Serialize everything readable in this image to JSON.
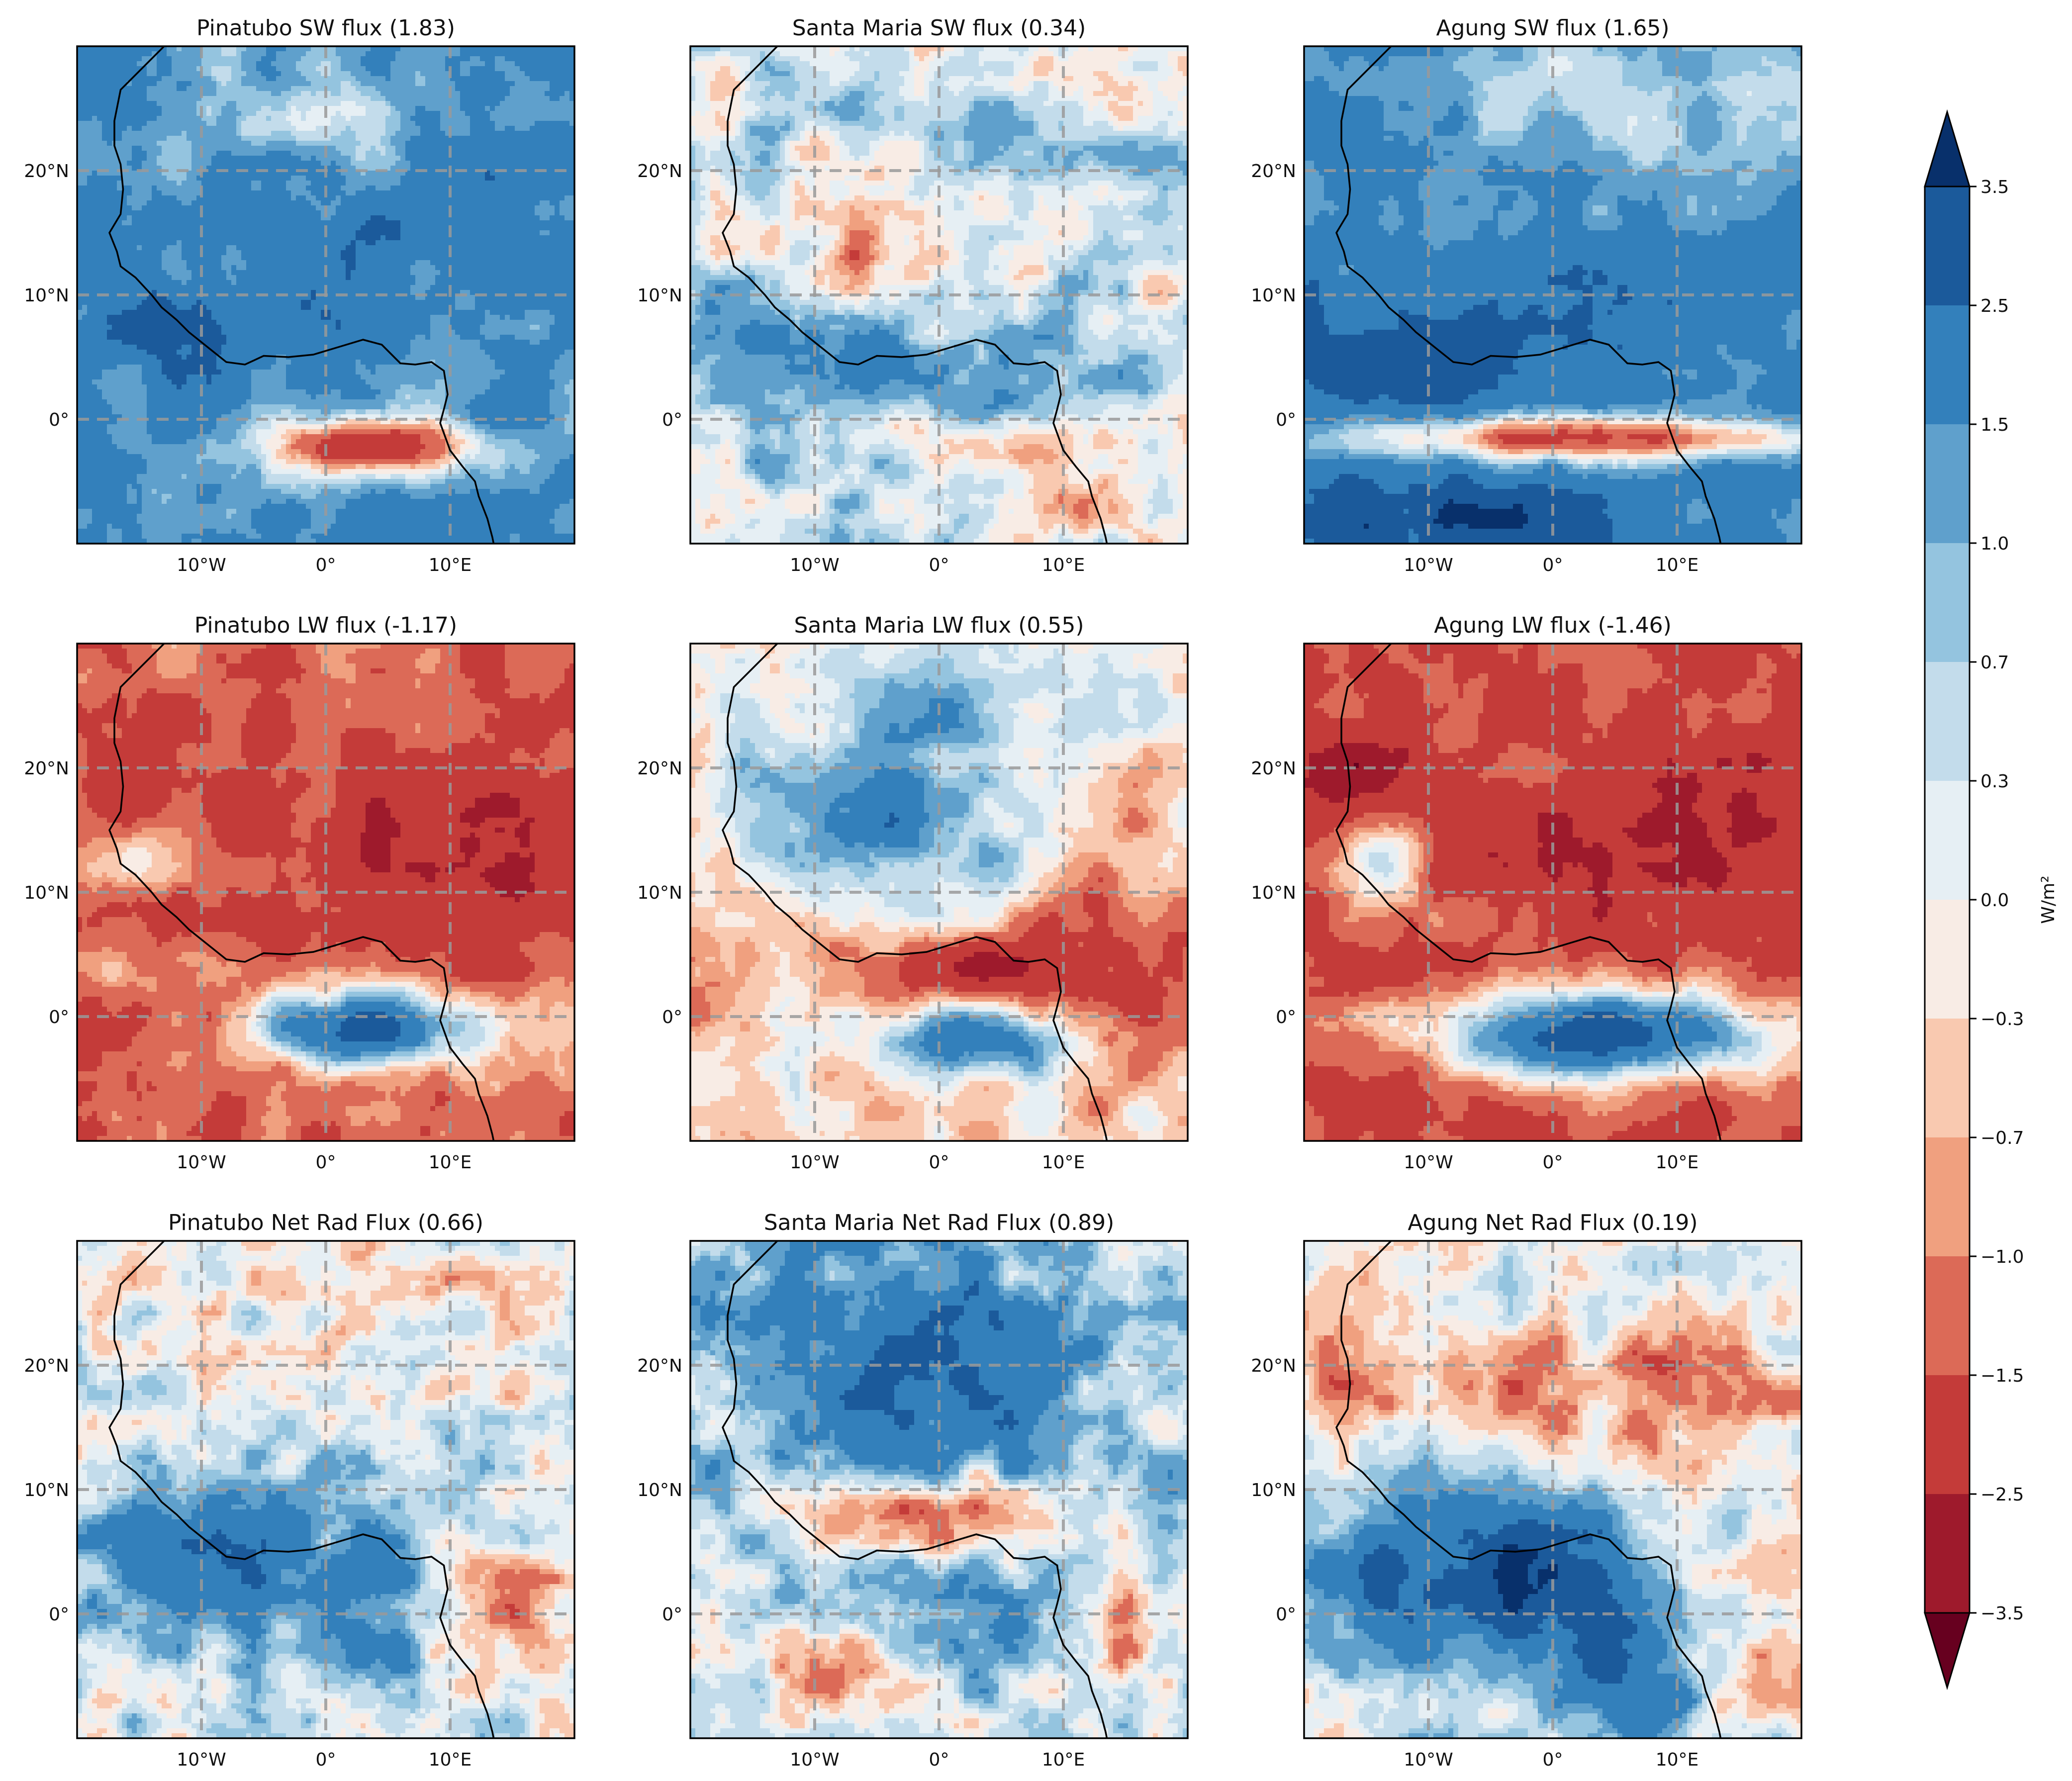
{
  "panels": [
    {
      "title": "Pinatubo SW flux (1.83)",
      "variable": "SW",
      "pattern": "sw_strong"
    },
    {
      "title": "Santa Maria SW flux (0.34)",
      "variable": "SW",
      "pattern": "sw_mixed"
    },
    {
      "title": "Agung SW flux (1.65)",
      "variable": "SW",
      "pattern": "sw_strong2"
    },
    {
      "title": "Pinatubo LW flux (-1.17)",
      "variable": "LW",
      "pattern": "lw_red"
    },
    {
      "title": "Santa Maria LW flux (0.55)",
      "variable": "LW",
      "pattern": "lw_mixed"
    },
    {
      "title": "Agung LW flux (-1.46)",
      "variable": "LW",
      "pattern": "lw_red2"
    },
    {
      "title": "Pinatubo Net Rad Flux (0.66)",
      "variable": "Net",
      "pattern": "net1"
    },
    {
      "title": "Santa Maria Net Rad Flux (0.89)",
      "variable": "Net",
      "pattern": "net2"
    },
    {
      "title": "Agung Net Rad Flux (0.19)",
      "variable": "Net",
      "pattern": "net3"
    }
  ],
  "axes": {
    "lat_ticks": [
      "20°N",
      "10°N",
      "0°"
    ],
    "lon_ticks": [
      "10°W",
      "0°",
      "10°E"
    ],
    "lon_range": [
      -20,
      20
    ],
    "lat_range": [
      -10,
      30
    ]
  },
  "colorbar": {
    "label": "W/m²",
    "ticks": [
      "3.5",
      "2.5",
      "1.5",
      "1.0",
      "0.7",
      "0.3",
      "0.0",
      "−0.3",
      "−0.7",
      "−1.0",
      "−1.5",
      "−2.5",
      "−3.5"
    ],
    "colors_top_to_bottom": [
      "#08306b",
      "#1b5a9b",
      "#3380bb",
      "#5fa0cc",
      "#94c4df",
      "#c3dceb",
      "#e6eff4",
      "#f8ece5",
      "#f9c9b0",
      "#f0a07f",
      "#dc6a57",
      "#c43b39",
      "#9e1a2c",
      "#67001f"
    ],
    "extend": "both",
    "colormap": "RdBu"
  },
  "chart_data": [
    {
      "type": "heatmap",
      "title": "Pinatubo SW flux (1.83)",
      "xlabel": "",
      "ylabel": "",
      "xlim": [
        -20,
        20
      ],
      "ylim": [
        -10,
        30
      ],
      "mean": 1.83
    },
    {
      "type": "heatmap",
      "title": "Santa Maria SW flux (0.34)",
      "xlabel": "",
      "ylabel": "",
      "xlim": [
        -20,
        20
      ],
      "ylim": [
        -10,
        30
      ],
      "mean": 0.34
    },
    {
      "type": "heatmap",
      "title": "Agung SW flux (1.65)",
      "xlabel": "",
      "ylabel": "",
      "xlim": [
        -20,
        20
      ],
      "ylim": [
        -10,
        30
      ],
      "mean": 1.65
    },
    {
      "type": "heatmap",
      "title": "Pinatubo LW flux (-1.17)",
      "xlabel": "",
      "ylabel": "",
      "xlim": [
        -20,
        20
      ],
      "ylim": [
        -10,
        30
      ],
      "mean": -1.17
    },
    {
      "type": "heatmap",
      "title": "Santa Maria LW flux (0.55)",
      "xlabel": "",
      "ylabel": "",
      "xlim": [
        -20,
        20
      ],
      "ylim": [
        -10,
        30
      ],
      "mean": 0.55
    },
    {
      "type": "heatmap",
      "title": "Agung LW flux (-1.46)",
      "xlabel": "",
      "ylabel": "",
      "xlim": [
        -20,
        20
      ],
      "ylim": [
        -10,
        30
      ],
      "mean": -1.46
    },
    {
      "type": "heatmap",
      "title": "Pinatubo Net Rad Flux (0.66)",
      "xlabel": "",
      "ylabel": "",
      "xlim": [
        -20,
        20
      ],
      "ylim": [
        -10,
        30
      ],
      "mean": 0.66
    },
    {
      "type": "heatmap",
      "title": "Santa Maria Net Rad Flux (0.89)",
      "xlabel": "",
      "ylabel": "",
      "xlim": [
        -20,
        20
      ],
      "ylim": [
        -10,
        30
      ],
      "mean": 0.89
    },
    {
      "type": "heatmap",
      "title": "Agung Net Rad Flux (0.19)",
      "xlabel": "",
      "ylabel": "",
      "xlim": [
        -20,
        20
      ],
      "ylim": [
        -10,
        30
      ],
      "mean": 0.19
    }
  ]
}
